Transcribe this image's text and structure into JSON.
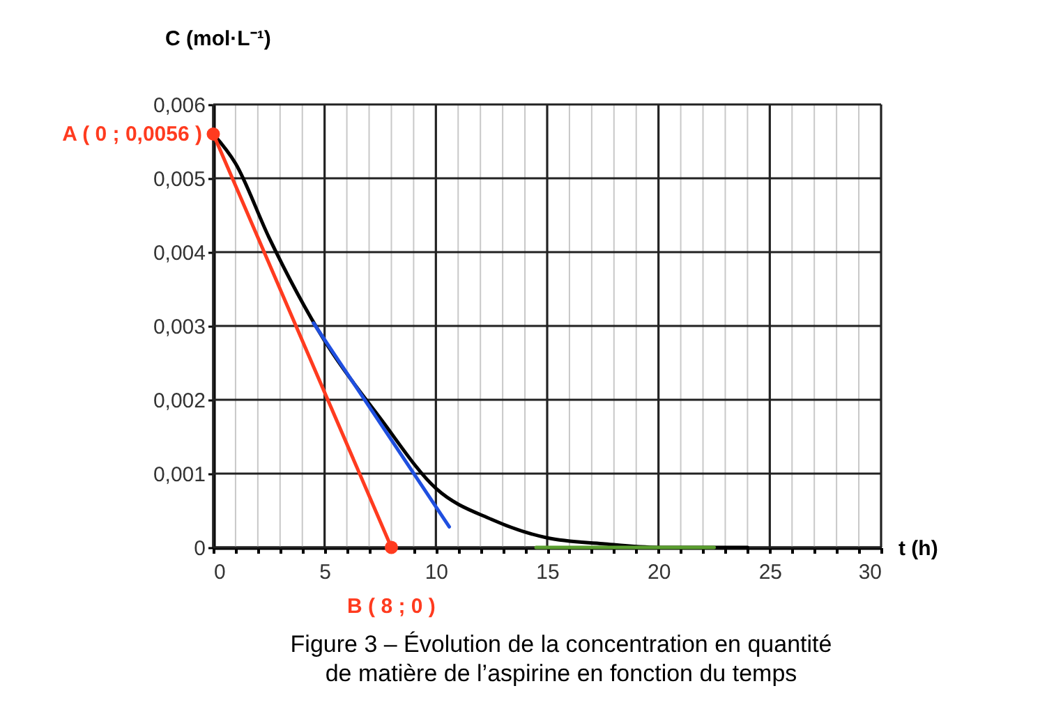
{
  "chart_data": {
    "type": "line",
    "title": "Figure 3 – Évolution de la concentration en quantité de matière de l’aspirine en fonction du temps",
    "xlabel": "t (h)",
    "ylabel": "C (mol·L⁻¹)",
    "xlim": [
      0,
      30
    ],
    "ylim": [
      0,
      0.006
    ],
    "xticks": [
      0,
      {
        "value": 1,
        "label": null
      },
      {
        "value": 2,
        "label": null
      },
      {
        "value": 3,
        "label": null
      },
      {
        "value": 4,
        "label": null
      },
      5,
      {
        "value": 6,
        "label": null
      },
      {
        "value": 7,
        "label": null
      },
      {
        "value": 8,
        "label": null
      },
      {
        "value": 9,
        "label": null
      },
      10,
      {
        "value": 11,
        "label": null
      },
      {
        "value": 12,
        "label": null
      },
      {
        "value": 13,
        "label": null
      },
      {
        "value": 14,
        "label": null
      },
      15,
      {
        "value": 16,
        "label": null
      },
      {
        "value": 17,
        "label": null
      },
      {
        "value": 18,
        "label": null
      },
      {
        "value": 19,
        "label": null
      },
      20,
      {
        "value": 21,
        "label": null
      },
      {
        "value": 22,
        "label": null
      },
      {
        "value": 23,
        "label": null
      },
      {
        "value": 24,
        "label": null
      },
      25,
      {
        "value": 26,
        "label": null
      },
      {
        "value": 27,
        "label": null
      },
      {
        "value": 28,
        "label": null
      },
      {
        "value": 29,
        "label": null
      },
      30
    ],
    "yticks": [
      0,
      {
        "value": 0.001,
        "label": "0,001"
      },
      {
        "value": 0.002,
        "label": "0,002"
      },
      {
        "value": 0.003,
        "label": "0,003"
      },
      {
        "value": 0.004,
        "label": "0,004"
      },
      {
        "value": 0.005,
        "label": "0,005"
      },
      {
        "value": 0.006,
        "label": "0,006"
      }
    ],
    "grid": true,
    "series": [
      {
        "color": "#000000",
        "x": [
          0,
          1,
          2.5,
          5,
          7.5,
          10,
          12.5,
          15,
          17.5,
          20,
          24
        ],
        "values": [
          0.0056,
          0.0052,
          0.0042,
          0.0028,
          0.00175,
          0.0008,
          0.00038,
          0.00013,
          5e-05,
          0,
          0
        ]
      },
      {
        "color": "#1f4fe0",
        "x": [
          4.5,
          10.6
        ],
        "values": [
          0.00304,
          0.00028
        ]
      },
      {
        "color": "#ff3b1f",
        "x": [
          0,
          8
        ],
        "values": [
          0.0056,
          0
        ]
      },
      {
        "color": "#5a9e2f",
        "x": [
          14.5,
          22.5
        ],
        "values": [
          0,
          0
        ]
      },
      {
        "type": "scatter",
        "color": "#ff3b1f",
        "x": [
          0,
          8
        ],
        "values": [
          0.0056,
          0
        ],
        "marker": "circle"
      }
    ],
    "annotations": [
      {
        "text": "A ( 0 ; 0,0056 )",
        "x": 0,
        "y": 0.0056
      },
      {
        "text": "B ( 8 ; 0 )",
        "x": 8,
        "y": 0
      }
    ]
  }
}
